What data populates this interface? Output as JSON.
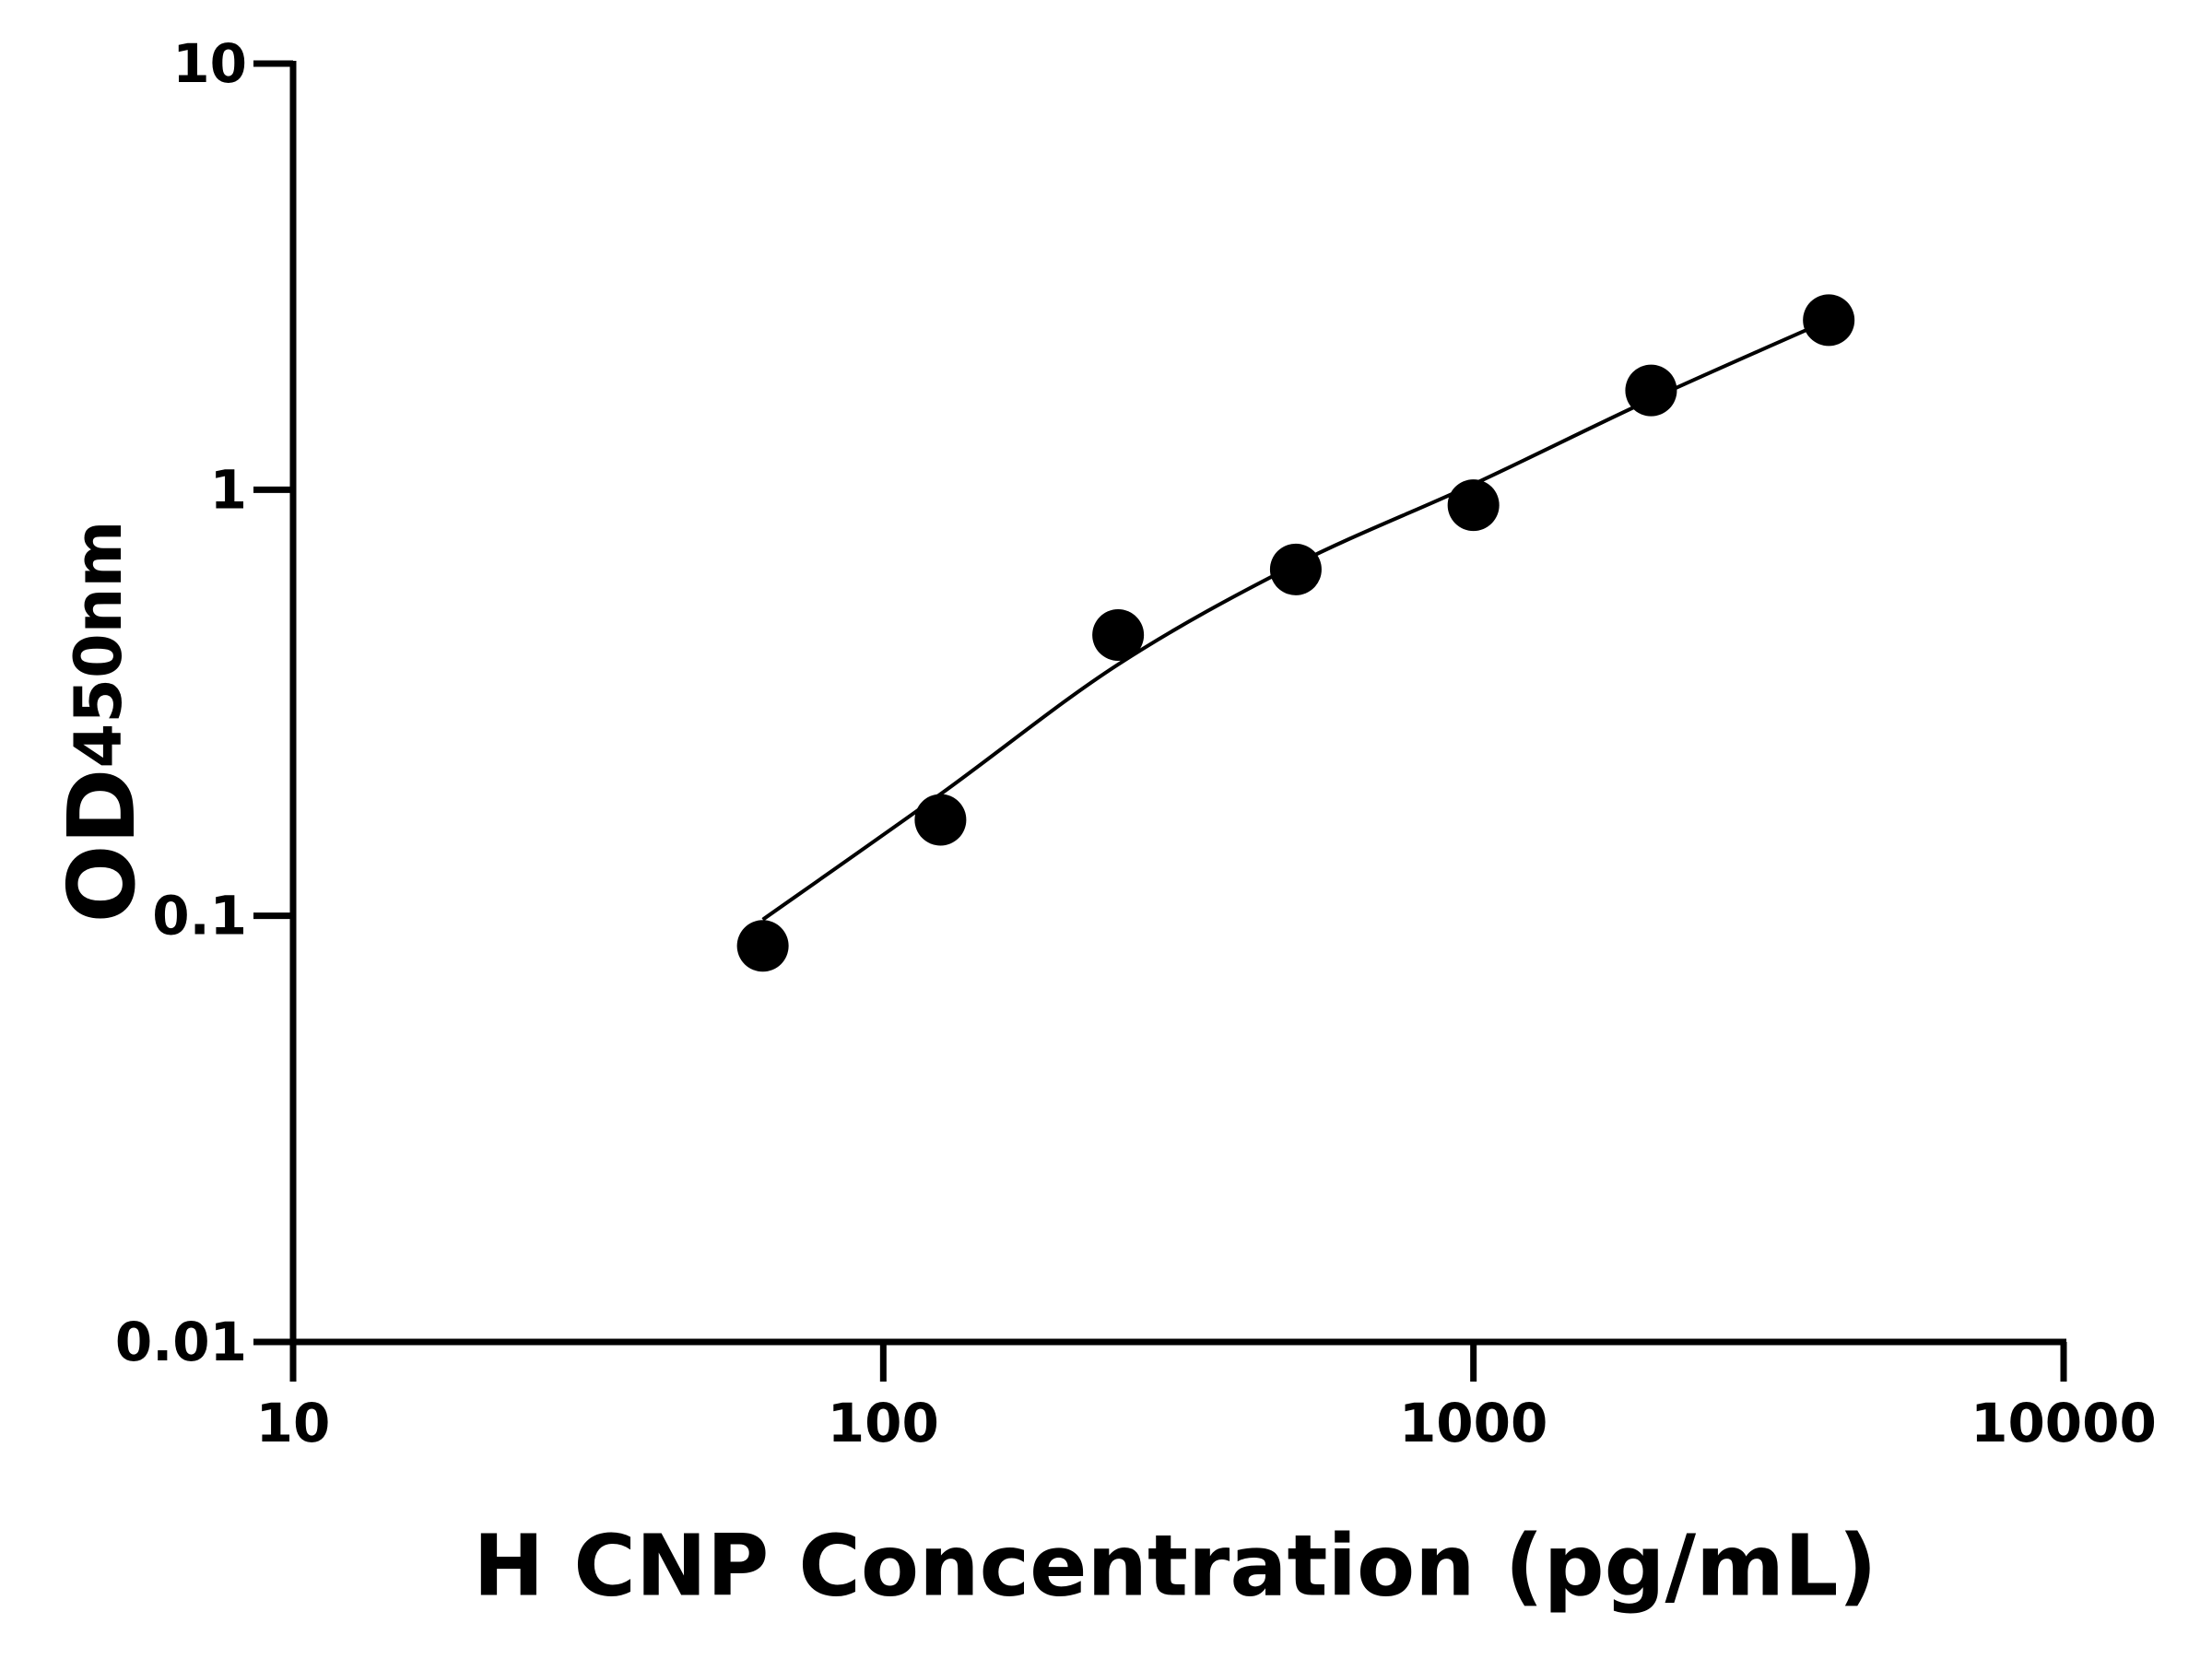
{
  "chart_data": {
    "type": "scatter",
    "x_label": "H CNP Concentration (pg/mL)",
    "y_label": "OD",
    "y_label_sub": "450nm",
    "x": [
      62.5,
      125,
      250,
      500,
      1000,
      2000,
      4000
    ],
    "series": [
      {
        "color": "#000000",
        "values": [
          0.085,
          0.168,
          0.456,
          0.65,
          0.92,
          1.71,
          2.5
        ]
      },
      {
        "color": "#000000",
        "values": [
          0.098,
          0.193,
          0.389,
          0.668,
          1.03,
          1.63,
          2.5
        ]
      }
    ],
    "xlim": [
      10,
      10000
    ],
    "xticks": [
      10,
      100,
      1000,
      10000
    ],
    "ylim": [
      0.01,
      10
    ],
    "yticks": [
      0.01,
      0.1,
      1,
      10
    ],
    "xscale": "log",
    "yscale": "log",
    "grid": false
  }
}
